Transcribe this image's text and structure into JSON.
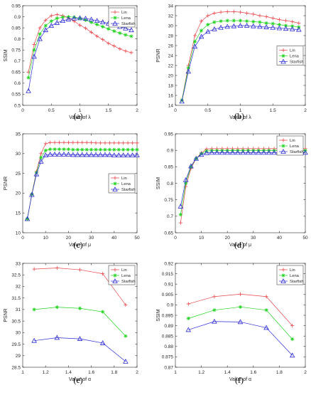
{
  "colors": {
    "Lin": "#e8474b",
    "Lena": "#22d322",
    "Starfish": "#2b2bd6"
  },
  "chart_data": [
    {
      "id": "a",
      "caption": "(a)",
      "type": "line",
      "xlabel": "Value of λ",
      "ylabel": "SSIM",
      "xlim": [
        0,
        2
      ],
      "ylim": [
        0.5,
        0.95
      ],
      "xticks": [
        0,
        0.5,
        1,
        1.5,
        2
      ],
      "xtick_labels": [
        "0",
        "0.5",
        "1",
        "1.5",
        "2"
      ],
      "yticks": [
        0.5,
        0.55,
        0.6,
        0.65,
        0.7,
        0.75,
        0.8,
        0.85,
        0.9,
        0.95
      ],
      "ytick_labels": [
        "0.5",
        "0.55",
        "0.6",
        "0.65",
        "0.7",
        "0.75",
        "0.8",
        "0.85",
        "0.9",
        "0.95"
      ],
      "legend": "top-right",
      "grid": false,
      "series": [
        {
          "name": "Lin",
          "marker": "plus",
          "x": [
            0.1,
            0.2,
            0.3,
            0.4,
            0.5,
            0.6,
            0.7,
            0.8,
            0.9,
            1.0,
            1.1,
            1.2,
            1.3,
            1.4,
            1.5,
            1.6,
            1.7,
            1.8,
            1.9
          ],
          "values": [
            0.65,
            0.775,
            0.85,
            0.885,
            0.905,
            0.91,
            0.905,
            0.895,
            0.88,
            0.862,
            0.848,
            0.83,
            0.812,
            0.797,
            0.78,
            0.768,
            0.755,
            0.745,
            0.738
          ]
        },
        {
          "name": "Lena",
          "marker": "star",
          "x": [
            0.1,
            0.2,
            0.3,
            0.4,
            0.5,
            0.6,
            0.7,
            0.8,
            0.9,
            1.0,
            1.1,
            1.2,
            1.3,
            1.4,
            1.5,
            1.6,
            1.7,
            1.8,
            1.9
          ],
          "values": [
            0.625,
            0.75,
            0.822,
            0.86,
            0.88,
            0.893,
            0.898,
            0.9,
            0.898,
            0.893,
            0.885,
            0.875,
            0.865,
            0.855,
            0.845,
            0.835,
            0.826,
            0.818,
            0.812
          ]
        },
        {
          "name": "Starfish",
          "marker": "triangle",
          "x": [
            0.1,
            0.2,
            0.3,
            0.4,
            0.5,
            0.6,
            0.7,
            0.8,
            0.9,
            1.0,
            1.1,
            1.2,
            1.3,
            1.4,
            1.5,
            1.6,
            1.7,
            1.8,
            1.9
          ],
          "values": [
            0.565,
            0.72,
            0.8,
            0.84,
            0.86,
            0.873,
            0.882,
            0.889,
            0.893,
            0.894,
            0.892,
            0.888,
            0.882,
            0.876,
            0.87,
            0.863,
            0.855,
            0.848,
            0.84
          ]
        }
      ]
    },
    {
      "id": "b",
      "caption": "(b)",
      "type": "line",
      "xlabel": "Value of λ",
      "ylabel": "PSNR",
      "xlim": [
        0,
        2
      ],
      "ylim": [
        14,
        34
      ],
      "xticks": [
        0,
        0.5,
        1,
        1.5,
        2
      ],
      "xtick_labels": [
        "0",
        "0.5",
        "1",
        "1.5",
        "2"
      ],
      "yticks": [
        14,
        16,
        18,
        20,
        22,
        24,
        26,
        28,
        30,
        32,
        34
      ],
      "ytick_labels": [
        "14",
        "16",
        "18",
        "20",
        "22",
        "24",
        "26",
        "28",
        "30",
        "32",
        "34"
      ],
      "legend": "right",
      "grid": false,
      "series": [
        {
          "name": "Lin",
          "marker": "plus",
          "x": [
            0.1,
            0.2,
            0.3,
            0.4,
            0.5,
            0.6,
            0.7,
            0.8,
            0.9,
            1.0,
            1.1,
            1.2,
            1.3,
            1.4,
            1.5,
            1.6,
            1.7,
            1.8,
            1.9
          ],
          "values": [
            15,
            22,
            28,
            30.9,
            32,
            32.5,
            32.7,
            32.8,
            32.8,
            32.7,
            32.5,
            32.3,
            32.0,
            31.8,
            31.5,
            31.2,
            31.0,
            30.8,
            30.5
          ]
        },
        {
          "name": "Lena",
          "marker": "star",
          "x": [
            0.1,
            0.2,
            0.3,
            0.4,
            0.5,
            0.6,
            0.7,
            0.8,
            0.9,
            1.0,
            1.1,
            1.2,
            1.3,
            1.4,
            1.5,
            1.6,
            1.7,
            1.8,
            1.9
          ],
          "values": [
            15,
            21.5,
            26.8,
            29.0,
            30.2,
            30.7,
            30.9,
            31.0,
            31.0,
            31.0,
            30.9,
            30.8,
            30.7,
            30.5,
            30.4,
            30.2,
            30.0,
            29.9,
            29.7
          ]
        },
        {
          "name": "Starfish",
          "marker": "triangle",
          "x": [
            0.1,
            0.2,
            0.3,
            0.4,
            0.5,
            0.6,
            0.7,
            0.8,
            0.9,
            1.0,
            1.1,
            1.2,
            1.3,
            1.4,
            1.5,
            1.6,
            1.7,
            1.8,
            1.9
          ],
          "values": [
            14.8,
            20.8,
            25.8,
            27.8,
            28.8,
            29.3,
            29.6,
            29.8,
            29.9,
            30.0,
            30.0,
            29.9,
            29.8,
            29.7,
            29.6,
            29.5,
            29.4,
            29.3,
            29.2
          ]
        }
      ]
    },
    {
      "id": "c",
      "caption": "(c)",
      "type": "line",
      "xlabel": "Value of μ",
      "ylabel": "PSNR",
      "xlim": [
        0,
        50
      ],
      "ylim": [
        10,
        35
      ],
      "xticks": [
        0,
        10,
        20,
        30,
        40,
        50
      ],
      "xtick_labels": [
        "0",
        "10",
        "20",
        "30",
        "40",
        "50"
      ],
      "yticks": [
        10,
        15,
        20,
        25,
        30,
        35
      ],
      "ytick_labels": [
        "10",
        "15",
        "20",
        "25",
        "30",
        "35"
      ],
      "legend": "right",
      "grid": false,
      "series": [
        {
          "name": "Lin",
          "marker": "plus",
          "x": [
            2,
            4,
            6,
            8,
            10,
            12,
            14,
            16,
            18,
            20,
            22,
            24,
            26,
            28,
            30,
            32,
            34,
            36,
            38,
            40,
            42,
            44,
            46,
            48,
            50
          ],
          "values": [
            13.5,
            19.8,
            25.5,
            30.0,
            32.5,
            32.8,
            32.8,
            32.8,
            32.8,
            32.8,
            32.8,
            32.8,
            32.8,
            32.8,
            32.8,
            32.7,
            32.7,
            32.7,
            32.7,
            32.7,
            32.7,
            32.7,
            32.7,
            32.7,
            32.7
          ]
        },
        {
          "name": "Lena",
          "marker": "star",
          "x": [
            2,
            4,
            6,
            8,
            10,
            12,
            14,
            16,
            18,
            20,
            22,
            24,
            26,
            28,
            30,
            32,
            34,
            36,
            38,
            40,
            42,
            44,
            46,
            48,
            50
          ],
          "values": [
            13.5,
            19.7,
            25.2,
            29.0,
            30.8,
            31.1,
            31.1,
            31.1,
            31.1,
            31.1,
            31.0,
            31.0,
            31.0,
            31.0,
            31.0,
            31.0,
            31.0,
            31.0,
            31.0,
            31.0,
            31.0,
            31.0,
            31.0,
            31.0,
            31.0
          ]
        },
        {
          "name": "Starfish",
          "marker": "triangle",
          "x": [
            2,
            4,
            6,
            8,
            10,
            12,
            14,
            16,
            18,
            20,
            22,
            24,
            26,
            28,
            30,
            32,
            34,
            36,
            38,
            40,
            42,
            44,
            46,
            48,
            50
          ],
          "values": [
            13.5,
            19.6,
            24.8,
            28.0,
            29.6,
            29.8,
            29.8,
            29.8,
            29.8,
            29.8,
            29.7,
            29.7,
            29.7,
            29.7,
            29.7,
            29.7,
            29.7,
            29.7,
            29.7,
            29.6,
            29.6,
            29.6,
            29.6,
            29.6,
            29.6
          ]
        }
      ]
    },
    {
      "id": "d",
      "caption": "(d)",
      "type": "line",
      "xlabel": "Value of μ",
      "ylabel": "SSIM",
      "xlim": [
        0,
        50
      ],
      "ylim": [
        0.65,
        0.95
      ],
      "xticks": [
        0,
        10,
        20,
        30,
        40,
        50
      ],
      "xtick_labels": [
        "0",
        "10",
        "20",
        "30",
        "40",
        "50"
      ],
      "yticks": [
        0.65,
        0.7,
        0.75,
        0.8,
        0.85,
        0.9,
        0.95
      ],
      "ytick_labels": [
        "0.65",
        "0.7",
        "0.75",
        "0.8",
        "0.85",
        "0.9",
        "0.95"
      ],
      "legend": "top-right",
      "grid": false,
      "series": [
        {
          "name": "Lin",
          "marker": "plus",
          "x": [
            2,
            4,
            6,
            8,
            10,
            12,
            14,
            16,
            18,
            20,
            22,
            24,
            26,
            28,
            30,
            32,
            34,
            36,
            38,
            40,
            42,
            44,
            46,
            48,
            50
          ],
          "values": [
            0.68,
            0.79,
            0.845,
            0.875,
            0.892,
            0.904,
            0.905,
            0.905,
            0.905,
            0.905,
            0.905,
            0.905,
            0.905,
            0.905,
            0.905,
            0.905,
            0.905,
            0.905,
            0.905,
            0.905,
            0.905,
            0.905,
            0.905,
            0.905,
            0.905
          ]
        },
        {
          "name": "Lena",
          "marker": "star",
          "x": [
            2,
            4,
            6,
            8,
            10,
            12,
            14,
            16,
            18,
            20,
            22,
            24,
            26,
            28,
            30,
            32,
            34,
            36,
            38,
            40,
            42,
            44,
            46,
            48,
            50
          ],
          "values": [
            0.705,
            0.8,
            0.85,
            0.875,
            0.89,
            0.898,
            0.899,
            0.899,
            0.899,
            0.899,
            0.899,
            0.899,
            0.899,
            0.899,
            0.899,
            0.899,
            0.899,
            0.899,
            0.899,
            0.899,
            0.899,
            0.899,
            0.899,
            0.899,
            0.899
          ]
        },
        {
          "name": "Starfish",
          "marker": "triangle",
          "x": [
            2,
            4,
            6,
            8,
            10,
            12,
            14,
            16,
            18,
            20,
            22,
            24,
            26,
            28,
            30,
            32,
            34,
            36,
            38,
            40,
            42,
            44,
            46,
            48,
            50
          ],
          "values": [
            0.73,
            0.81,
            0.852,
            0.875,
            0.887,
            0.892,
            0.893,
            0.893,
            0.893,
            0.893,
            0.893,
            0.893,
            0.893,
            0.893,
            0.893,
            0.893,
            0.893,
            0.893,
            0.893,
            0.893,
            0.893,
            0.893,
            0.893,
            0.893,
            0.893
          ]
        }
      ]
    },
    {
      "id": "e",
      "caption": "(e)",
      "type": "line",
      "xlabel": "Value of α",
      "ylabel": "PSNR",
      "xlim": [
        1,
        2
      ],
      "ylim": [
        28.5,
        33
      ],
      "xticks": [
        1,
        1.2,
        1.4,
        1.6,
        1.8,
        2
      ],
      "xtick_labels": [
        "1",
        "1.2",
        "1.4",
        "1.6",
        "1.8",
        "2"
      ],
      "yticks": [
        28.5,
        29,
        29.5,
        30,
        30.5,
        31,
        31.5,
        32,
        32.5,
        33
      ],
      "ytick_labels": [
        "28.5",
        "29",
        "29.5",
        "30",
        "30.5",
        "31",
        "31.5",
        "32",
        "32.5",
        "33"
      ],
      "legend": "top-right",
      "grid": false,
      "series": [
        {
          "name": "Lin",
          "marker": "plus",
          "x": [
            1.1,
            1.3,
            1.5,
            1.7,
            1.9
          ],
          "values": [
            32.75,
            32.8,
            32.72,
            32.55,
            31.2
          ]
        },
        {
          "name": "Lena",
          "marker": "star",
          "x": [
            1.1,
            1.3,
            1.5,
            1.7,
            1.9
          ],
          "values": [
            31.0,
            31.1,
            31.05,
            30.9,
            29.85
          ]
        },
        {
          "name": "Starfish",
          "marker": "triangle",
          "x": [
            1.1,
            1.3,
            1.5,
            1.7,
            1.9
          ],
          "values": [
            29.65,
            29.78,
            29.73,
            29.55,
            28.75
          ]
        }
      ]
    },
    {
      "id": "f",
      "caption": "(f)",
      "type": "line",
      "xlabel": "Value of α",
      "ylabel": "SSIM",
      "xlim": [
        1,
        2
      ],
      "ylim": [
        0.87,
        0.92
      ],
      "xticks": [
        1,
        1.2,
        1.4,
        1.6,
        1.8,
        2
      ],
      "xtick_labels": [
        "1",
        "1.2",
        "1.4",
        "1.6",
        "1.8",
        "2"
      ],
      "yticks": [
        0.87,
        0.875,
        0.88,
        0.885,
        0.89,
        0.895,
        0.9,
        0.905,
        0.91,
        0.915,
        0.92
      ],
      "ytick_labels": [
        "0.87",
        "0.875",
        "0.88",
        "0.885",
        "0.89",
        "0.895",
        "0.9",
        "0.905",
        "0.91",
        "0.915",
        "0.92"
      ],
      "legend": "top-right",
      "grid": false,
      "series": [
        {
          "name": "Lin",
          "marker": "plus",
          "x": [
            1.1,
            1.3,
            1.5,
            1.7,
            1.9
          ],
          "values": [
            0.9005,
            0.904,
            0.9052,
            0.904,
            0.89
          ]
        },
        {
          "name": "Lena",
          "marker": "star",
          "x": [
            1.1,
            1.3,
            1.5,
            1.7,
            1.9
          ],
          "values": [
            0.8935,
            0.8975,
            0.899,
            0.8975,
            0.8835
          ]
        },
        {
          "name": "Starfish",
          "marker": "triangle",
          "x": [
            1.1,
            1.3,
            1.5,
            1.7,
            1.9
          ],
          "values": [
            0.888,
            0.892,
            0.8918,
            0.889,
            0.8757
          ]
        }
      ]
    }
  ]
}
